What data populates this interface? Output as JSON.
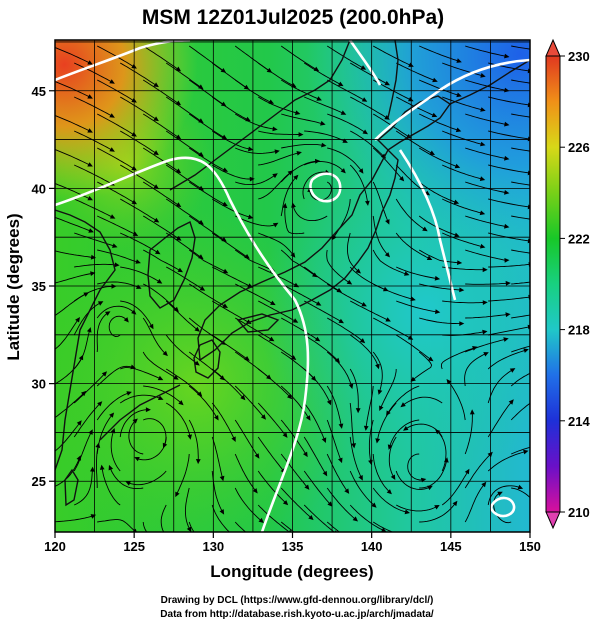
{
  "title": "MSM 12Z01Jul2025 (200.0hPa)",
  "x_axis": {
    "label": "Longitude (degrees)",
    "ticks": [
      "120",
      "125",
      "130",
      "135",
      "140",
      "145",
      "150"
    ]
  },
  "y_axis": {
    "label": "Latitude  (degrees)",
    "ticks": [
      "25",
      "30",
      "35",
      "40",
      "45"
    ]
  },
  "colorbar": {
    "ticks": [
      "230",
      "226",
      "222",
      "218",
      "214",
      "210"
    ],
    "min": 210,
    "max": 230
  },
  "credits": {
    "line1": "Drawing by DCL (https://www.gfd-dennou.org/library/dcl/)",
    "line2": "Data from http://database.rish.kyoto-u.ac.jp/arch/jmadata/"
  },
  "chart_data": {
    "type": "heatmap",
    "title": "MSM 12Z01Jul2025 (200.0hPa)",
    "xlabel": "Longitude (degrees)",
    "ylabel": "Latitude  (degrees)",
    "xlim": [
      120,
      150
    ],
    "ylim": [
      22.4,
      47.6
    ],
    "colorbar_range": [
      210,
      230
    ],
    "grid": true,
    "overlays": [
      "streamlines",
      "coastlines",
      "white contour lines"
    ],
    "colors": {
      "high": "#e8402a",
      "mid": "#22c830",
      "low": "#2050e0"
    }
  }
}
